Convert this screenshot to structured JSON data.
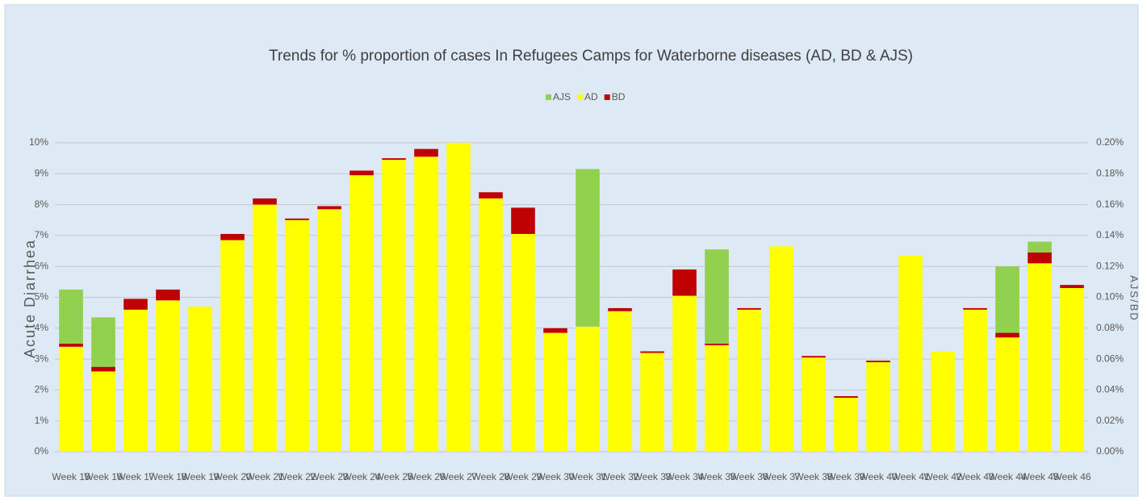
{
  "chart_data": {
    "type": "bar",
    "title": "Trends for % proportion of cases In Refugees Camps for Waterborne diseases (AD, BD & AJS)",
    "ylabel": "Acute Diarrhea",
    "y2label": "AJS/BD",
    "categories": [
      "Week 15",
      "Week 16",
      "Week 17",
      "Week 18",
      "Week 19",
      "Week 20",
      "Week 21",
      "Week 22",
      "Week 23",
      "Week 24",
      "Week 25",
      "Week 26",
      "Week 27",
      "Week 28",
      "Week 29",
      "Week 30",
      "Week 31",
      "Week 32",
      "Week 33",
      "Week 34",
      "Week 35",
      "Week 36",
      "Week 37",
      "Week 38",
      "Week 39",
      "Week 40",
      "Week 41",
      "Week 42",
      "Week 43",
      "Week 44",
      "Week 45",
      "Week 46"
    ],
    "series": [
      {
        "name": "AJS",
        "color": "#92d050",
        "axis": "y2",
        "values": [
          0.035,
          0.032,
          0,
          0,
          0,
          0,
          0,
          0,
          0,
          0,
          0,
          0,
          0,
          0,
          0,
          0,
          0.102,
          0,
          0,
          0,
          0.061,
          0,
          0,
          0,
          0,
          0,
          0,
          0,
          0,
          0.043,
          0.007,
          0
        ]
      },
      {
        "name": "AD",
        "color": "#ffff00",
        "values": [
          3.4,
          2.6,
          4.6,
          4.9,
          4.7,
          6.85,
          8.0,
          7.5,
          7.85,
          8.95,
          9.45,
          9.55,
          10,
          8.2,
          7.05,
          3.85,
          4.05,
          4.55,
          3.2,
          5.05,
          3.45,
          4.6,
          6.65,
          3.05,
          1.75,
          2.9,
          6.35,
          3.25,
          4.6,
          3.7,
          6.1,
          5.3
        ]
      },
      {
        "name": "BD",
        "color": "#c00000",
        "axis": "y2",
        "values": [
          0.002,
          0.003,
          0.007,
          0.007,
          0,
          0.004,
          0.004,
          0.001,
          0.002,
          0.003,
          0.001,
          0.005,
          0,
          0.004,
          0.017,
          0.003,
          0,
          0.002,
          0.001,
          0.017,
          0.001,
          0.001,
          0,
          0.001,
          0.001,
          0.001,
          0,
          0,
          0.001,
          0.003,
          0.007,
          0.002
        ]
      }
    ],
    "ylim": [
      0,
      10
    ],
    "yticks": [
      {
        "value": 0,
        "label": "0%"
      },
      {
        "value": 1,
        "label": "1%"
      },
      {
        "value": 2,
        "label": "2%"
      },
      {
        "value": 3,
        "label": "3%"
      },
      {
        "value": 4,
        "label": "4%"
      },
      {
        "value": 5,
        "label": "5%"
      },
      {
        "value": 6,
        "label": "6%"
      },
      {
        "value": 7,
        "label": "7%"
      },
      {
        "value": 8,
        "label": "8%"
      },
      {
        "value": 9,
        "label": "9%"
      },
      {
        "value": 10,
        "label": "10%"
      }
    ],
    "y2lim": [
      0,
      0.2
    ],
    "y2ticks": [
      {
        "value": 0,
        "label": "0.00%"
      },
      {
        "value": 0.02,
        "label": "0.02%"
      },
      {
        "value": 0.04,
        "label": "0.04%"
      },
      {
        "value": 0.06,
        "label": "0.06%"
      },
      {
        "value": 0.08,
        "label": "0.08%"
      },
      {
        "value": 0.1,
        "label": "0.10%"
      },
      {
        "value": 0.12,
        "label": "0.12%"
      },
      {
        "value": 0.14,
        "label": "0.14%"
      },
      {
        "value": 0.16,
        "label": "0.16%"
      },
      {
        "value": 0.18,
        "label": "0.18%"
      },
      {
        "value": 0.2,
        "label": "0.20%"
      }
    ],
    "grid": true,
    "legend": "top"
  }
}
